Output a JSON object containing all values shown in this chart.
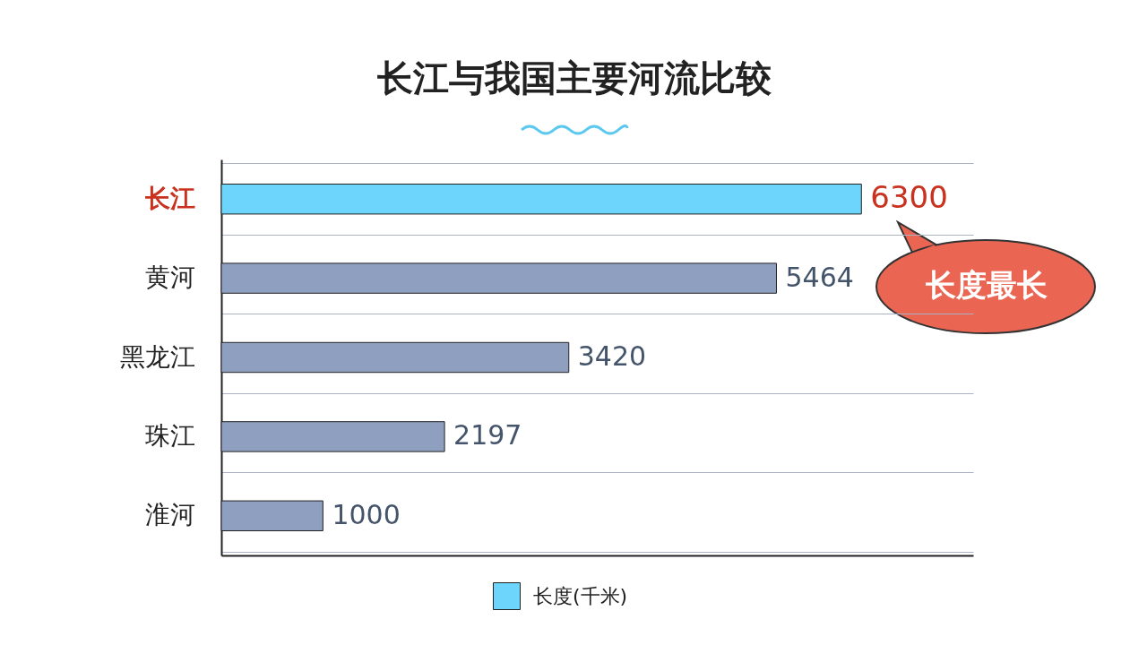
{
  "chart_data": {
    "type": "bar",
    "orientation": "horizontal",
    "title": "长江与我国主要河流比较",
    "categories": [
      "长江",
      "黄河",
      "黑龙江",
      "珠江",
      "淮河"
    ],
    "series": [
      {
        "name": "长度(千米)",
        "color": "#6dd5fc",
        "colors": [
          "#6dd5fc",
          "#8f9fbf",
          "#8f9fbf",
          "#8f9fbf",
          "#8f9fbf"
        ],
        "values": [
          6300,
          5464,
          3420,
          2197,
          1000
        ]
      }
    ],
    "xlim": [
      0,
      7400
    ],
    "tick_labels": "y",
    "data_labels": true,
    "grid": "y",
    "legend": "bottom",
    "annotations": [
      "长度最长"
    ]
  }
}
